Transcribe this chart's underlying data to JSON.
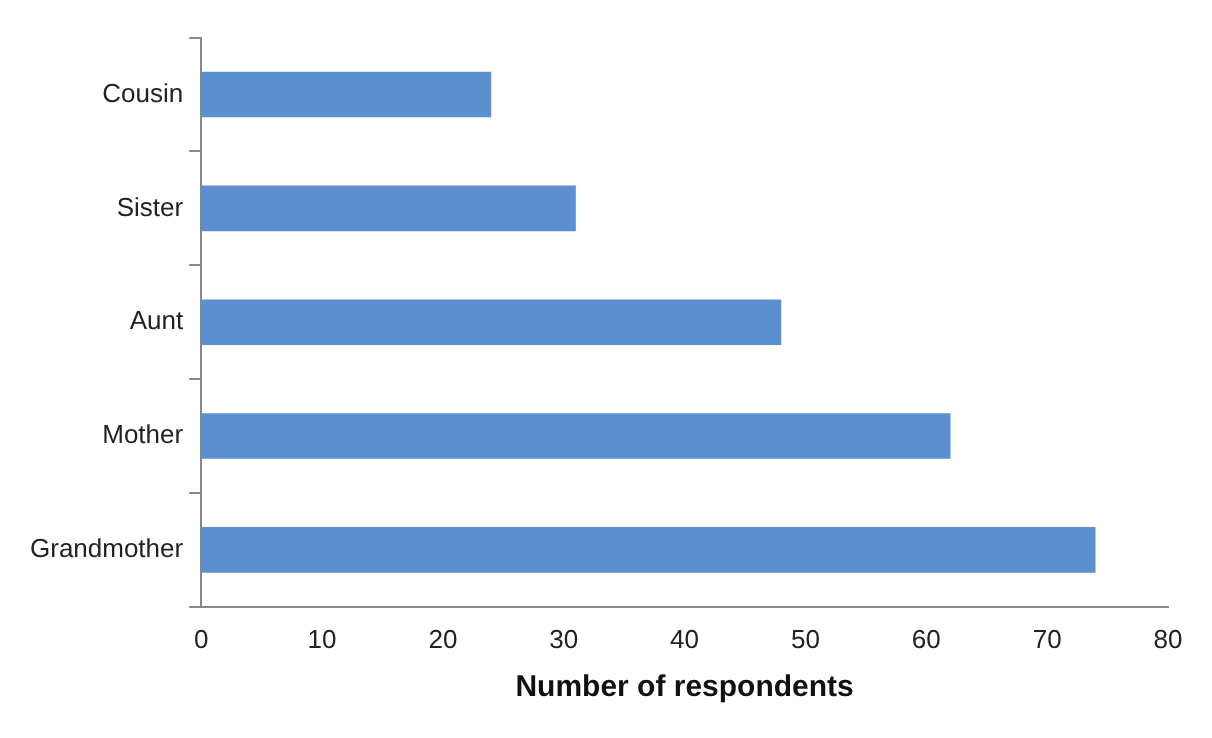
{
  "chart_data": {
    "type": "bar",
    "orientation": "horizontal",
    "xlabel": "Number of respondents",
    "categories": [
      "Cousin",
      "Sister",
      "Aunt",
      "Mother",
      "Grandmother"
    ],
    "values": [
      24,
      31,
      48,
      62,
      74
    ],
    "color": "#5b8fd0",
    "xlim": [
      0,
      80
    ],
    "xticks": [
      0,
      10,
      20,
      30,
      40,
      50,
      60,
      70,
      80
    ],
    "grid": false,
    "legend": false
  }
}
